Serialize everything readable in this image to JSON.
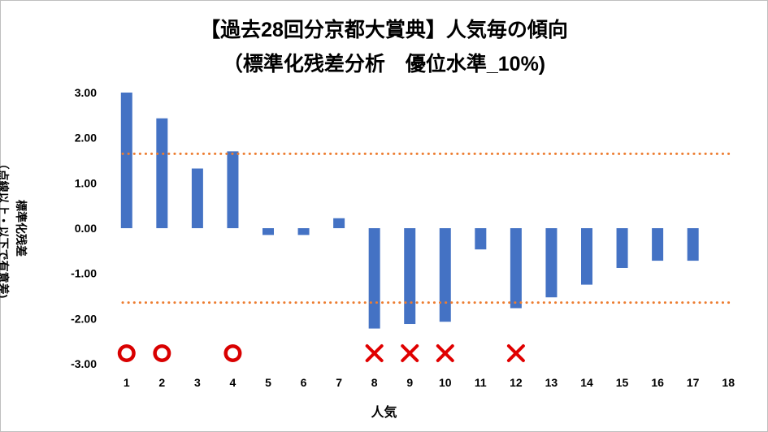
{
  "chart_data": {
    "type": "bar",
    "title": "【過去28回分京都大賞典】人気毎の傾向",
    "subtitle": "（標準化残差分析　優位水準_10%)",
    "xlabel": "人気",
    "ylabel_lines": [
      "標準化残差",
      "（点線以上・以下で有意差)"
    ],
    "ylim": [
      -3.0,
      3.0
    ],
    "y_ticks": [
      "3.00",
      "2.00",
      "1.00",
      "0.00",
      "-1.00",
      "-2.00",
      "-3.00"
    ],
    "categories": [
      "1",
      "2",
      "3",
      "4",
      "5",
      "6",
      "7",
      "8",
      "9",
      "10",
      "11",
      "12",
      "13",
      "14",
      "15",
      "16",
      "17",
      "18"
    ],
    "values": [
      3.0,
      2.43,
      1.32,
      1.7,
      -0.15,
      -0.15,
      0.22,
      -2.22,
      -2.12,
      -2.07,
      -0.47,
      -1.77,
      -1.53,
      -1.25,
      -0.88,
      -0.72,
      -0.72,
      null
    ],
    "threshold_upper": 1.645,
    "threshold_lower": -1.645,
    "markers": [
      {
        "category": "1",
        "symbol": "circle"
      },
      {
        "category": "2",
        "symbol": "circle"
      },
      {
        "category": "4",
        "symbol": "circle"
      },
      {
        "category": "8",
        "symbol": "cross"
      },
      {
        "category": "9",
        "symbol": "cross"
      },
      {
        "category": "10",
        "symbol": "cross"
      },
      {
        "category": "12",
        "symbol": "cross"
      }
    ],
    "grid": false,
    "colors": {
      "bar": "#4472c4",
      "threshold": "#ed7d31",
      "circle_marker": "#d90000",
      "cross_marker": "#e00000"
    }
  }
}
